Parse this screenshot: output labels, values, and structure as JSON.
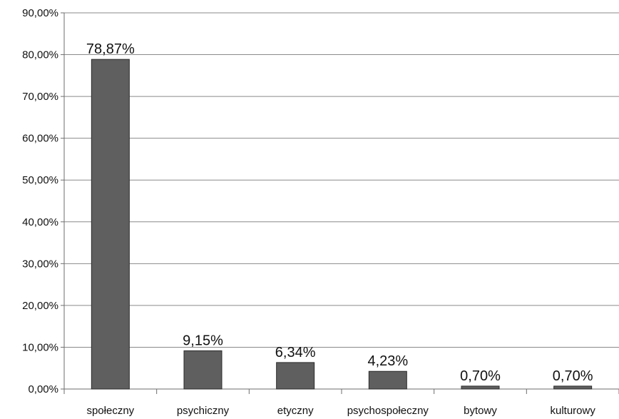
{
  "chart_data": {
    "type": "bar",
    "categories": [
      "społeczny",
      "psychiczny",
      "etyczny",
      "psychospołeczny",
      "bytowy",
      "kulturowy"
    ],
    "values": [
      78.87,
      9.15,
      6.34,
      4.23,
      0.7,
      0.7
    ],
    "data_labels": [
      "78,87%",
      "9,15%",
      "6,34%",
      "4,23%",
      "0,70%",
      "0,70%"
    ],
    "y_ticks": [
      "0,00%",
      "10,00%",
      "20,00%",
      "30,00%",
      "40,00%",
      "50,00%",
      "60,00%",
      "70,00%",
      "80,00%",
      "90,00%"
    ],
    "ylim": [
      0,
      90
    ],
    "grid": true,
    "legend": "none",
    "title": "",
    "xlabel": "",
    "ylabel": "",
    "colors": {
      "bar": "#5f5f5f",
      "bar_stroke": "#2b2b2b",
      "grid": "#8a8a8a",
      "axis": "#6e6e6e"
    }
  }
}
